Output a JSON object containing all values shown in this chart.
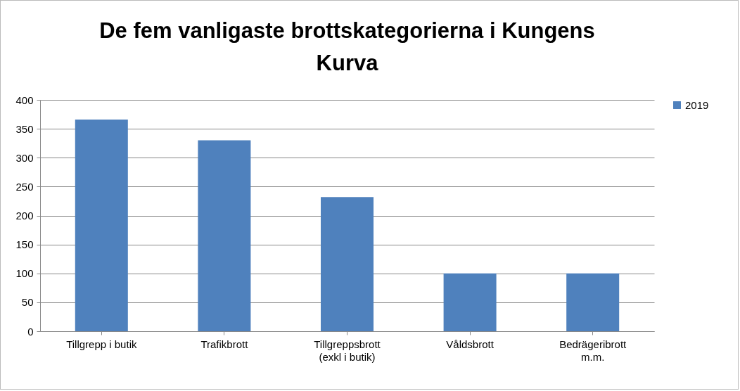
{
  "chart_data": {
    "type": "bar",
    "title": "De fem vanligaste brottskategorierna i Kungens Kurva",
    "categories": [
      "Tillgrepp i butik",
      "Trafikbrott",
      "Tillgreppsbrott (exkl i butik)",
      "Våldsbrott",
      "Bedrägeribrott m.m."
    ],
    "series": [
      {
        "name": "2019",
        "color": "#4f81bd",
        "values": [
          366,
          330,
          232,
          100,
          100
        ]
      }
    ],
    "ylim": [
      0,
      400
    ],
    "yticks": [
      0,
      50,
      100,
      150,
      200,
      250,
      300,
      350,
      400
    ],
    "grid": "y",
    "legend": "right"
  }
}
